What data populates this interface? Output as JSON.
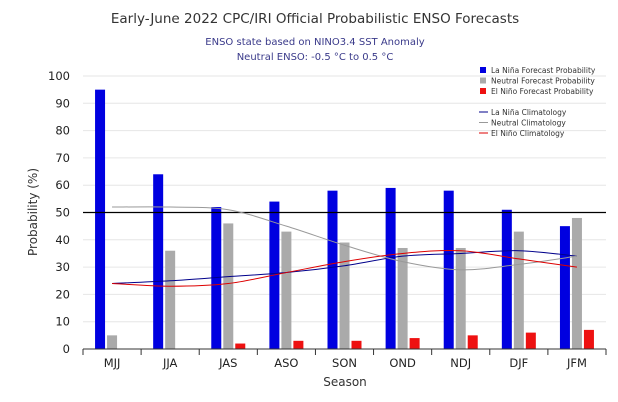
{
  "chart_data": {
    "type": "bar",
    "title": "Early-June 2022 CPC/IRI Official Probabilistic ENSO Forecasts",
    "subtitle_lines": [
      "ENSO state based on NINO3.4 SST Anomaly",
      "Neutral ENSO: -0.5 °C to 0.5 °C"
    ],
    "xlabel": "Season",
    "ylabel": "Probability (%)",
    "ylim": [
      0,
      100
    ],
    "yticks": [
      "0",
      "10",
      "20",
      "30",
      "40",
      "50",
      "60",
      "70",
      "80",
      "90",
      "100"
    ],
    "grid": true,
    "reference_line": 50,
    "legend_position": "top-right",
    "categories": [
      "MJJ",
      "JJA",
      "JAS",
      "ASO",
      "SON",
      "OND",
      "NDJ",
      "DJF",
      "JFM"
    ],
    "series": [
      {
        "name": "La Niña Forecast Probability",
        "color": "#0000e0",
        "values": [
          95,
          64,
          52,
          54,
          58,
          59,
          58,
          51,
          45
        ]
      },
      {
        "name": "Neutral Forecast Probability",
        "color": "#aaaaaa",
        "values": [
          5,
          36,
          46,
          43,
          39,
          37,
          37,
          43,
          48
        ]
      },
      {
        "name": "El Niño Forecast Probability",
        "color": "#ee1111",
        "values": [
          0,
          0,
          2,
          3,
          3,
          4,
          5,
          6,
          7
        ]
      }
    ],
    "climatology": [
      {
        "name": "La Niña Climatology",
        "color": "#00008b",
        "values": [
          24,
          25,
          26.5,
          28,
          30.5,
          34,
          35,
          36,
          34
        ]
      },
      {
        "name": "Neutral Climatology",
        "color": "#999999",
        "values": [
          52,
          52,
          51,
          45,
          38,
          32,
          29,
          31,
          34
        ]
      },
      {
        "name": "El Niño Climatology",
        "color": "#dd0000",
        "values": [
          24,
          23,
          24,
          28,
          32,
          35,
          36,
          33,
          30
        ]
      }
    ]
  }
}
